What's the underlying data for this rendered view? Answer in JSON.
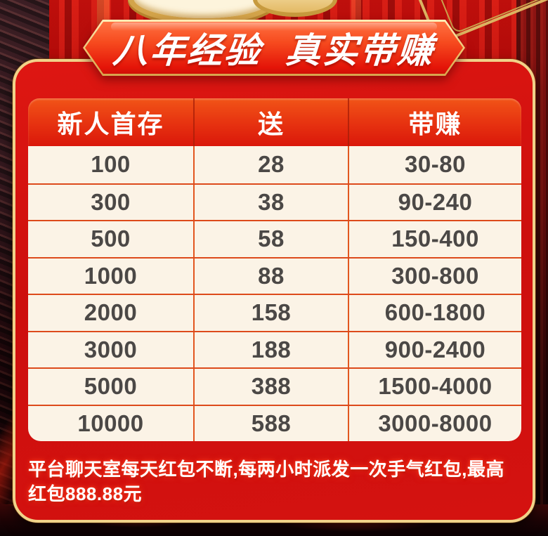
{
  "banner": {
    "title": "八年经验  真实带赚"
  },
  "table": {
    "headers": [
      "新人首存",
      "送",
      "带赚"
    ],
    "rows": [
      [
        "100",
        "28",
        "30-80"
      ],
      [
        "300",
        "38",
        "90-240"
      ],
      [
        "500",
        "58",
        "150-400"
      ],
      [
        "1000",
        "88",
        "300-800"
      ],
      [
        "2000",
        "158",
        "600-1800"
      ],
      [
        "3000",
        "188",
        "900-2400"
      ],
      [
        "5000",
        "388",
        "1500-4000"
      ],
      [
        "10000",
        "588",
        "3000-8000"
      ]
    ]
  },
  "notice": {
    "line1": "平台聊天室每天红包不断,每两小时派发一次手气红包,最高",
    "line2": "红包888.88元"
  },
  "colors": {
    "card_red": "#cd0f0d",
    "gold_border": "#f1d289",
    "header_gradient_top": "#f15417",
    "header_gradient_bottom": "#da170a",
    "row_cream": "#fbf3e6",
    "grid_line": "#e2561f",
    "cell_text": "#4b4846"
  }
}
